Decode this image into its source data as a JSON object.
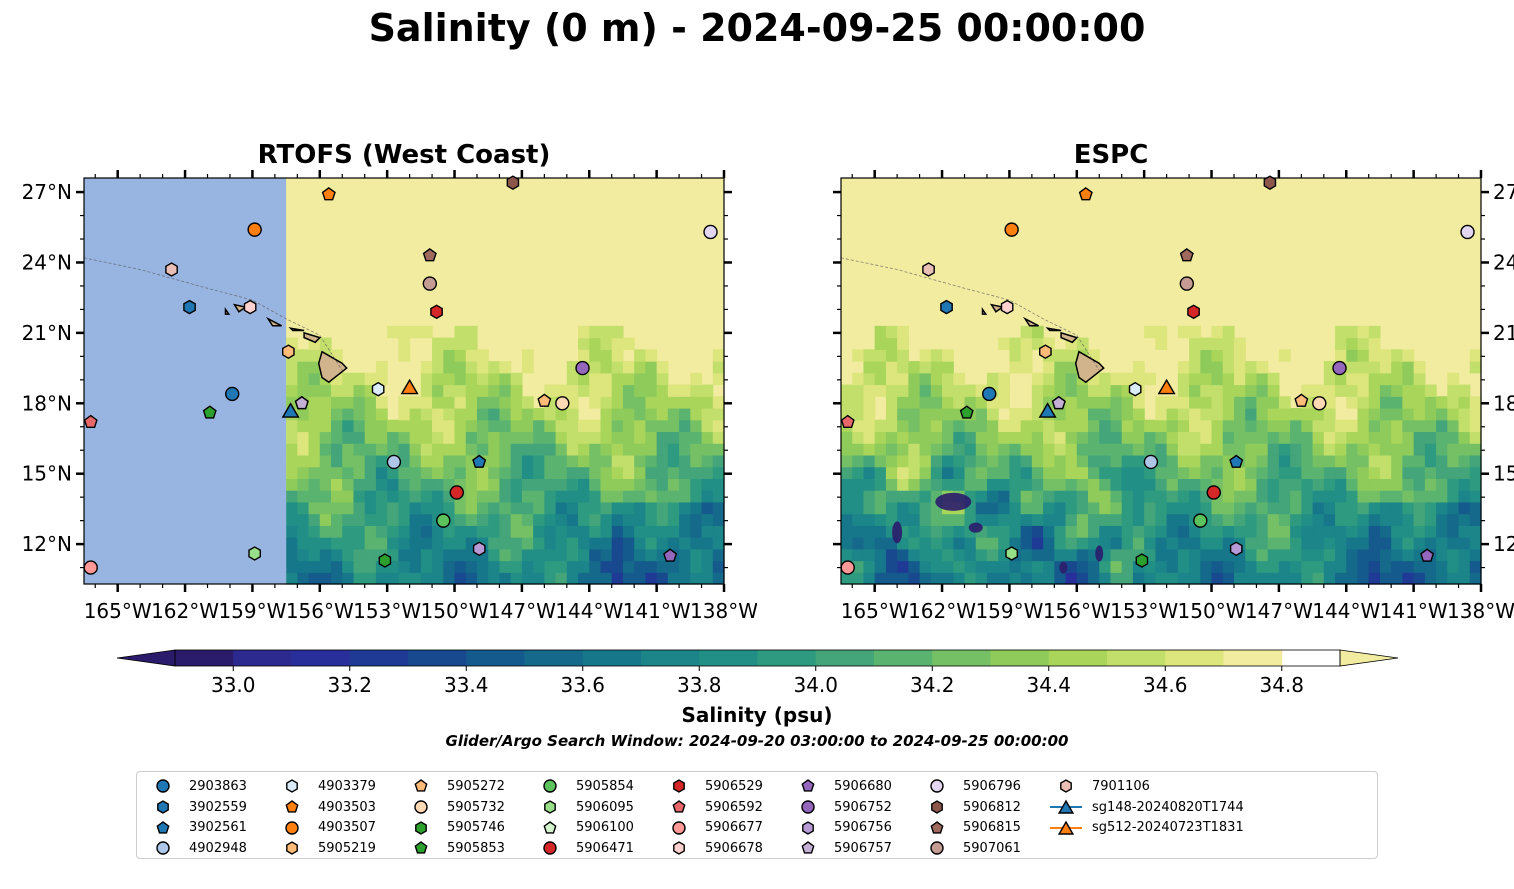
{
  "title": "Salinity (0 m) - 2024-09-25 00:00:00",
  "panels": [
    {
      "id": "left",
      "title": "RTOFS (West Coast)"
    },
    {
      "id": "right",
      "title": "ESPC"
    }
  ],
  "axes": {
    "lon_range": [
      -166.5,
      -138
    ],
    "lat_range": [
      10.3,
      27.6
    ],
    "lon_ticks": [
      -165,
      -162,
      -159,
      -156,
      -153,
      -150,
      -147,
      -144,
      -141,
      -138
    ],
    "lon_tick_labels": [
      "165°W",
      "162°W",
      "159°W",
      "156°W",
      "153°W",
      "150°W",
      "147°W",
      "144°W",
      "141°W",
      "138°W"
    ],
    "lat_ticks": [
      12,
      15,
      18,
      21,
      24,
      27
    ],
    "lat_tick_labels": [
      "12°N",
      "15°N",
      "18°N",
      "21°N",
      "24°N",
      "27°N"
    ]
  },
  "colorbar": {
    "label": "Salinity (psu)",
    "min": 32.9,
    "max": 34.9,
    "step": 0.1,
    "ticks": [
      33.0,
      33.2,
      33.4,
      33.6,
      33.8,
      34.0,
      34.2,
      34.4,
      34.6,
      34.8
    ],
    "tick_labels": [
      "33.0",
      "33.2",
      "33.4",
      "33.6",
      "33.8",
      "34.0",
      "34.2",
      "34.4",
      "34.6",
      "34.8"
    ],
    "extend": "both",
    "colors": [
      "#2a1c6b",
      "#2d2a8f",
      "#292f9a",
      "#1f3a95",
      "#18498f",
      "#155a8c",
      "#15698b",
      "#17778a",
      "#1b8589",
      "#228f86",
      "#2e9a80",
      "#43a579",
      "#5ab46f",
      "#75c065",
      "#8fcb5b",
      "#a8d55a",
      "#c3df6b",
      "#dde57d",
      "#f2eca0"
    ]
  },
  "search_window": "Glider/Argo Search Window: 2024-09-20 03:00:00 to 2024-09-25 00:00:00",
  "legend": [
    {
      "label": "2903863",
      "marker": "circle",
      "color": "#1f77b4"
    },
    {
      "label": "3902559",
      "marker": "hexagon",
      "color": "#1f77b4"
    },
    {
      "label": "3902561",
      "marker": "pentagon",
      "color": "#1f77b4"
    },
    {
      "label": "4902948",
      "marker": "circle",
      "color": "#aec7e8"
    },
    {
      "label": "4903379",
      "marker": "hexagon",
      "color": "#d9ecf8"
    },
    {
      "label": "4903503",
      "marker": "pentagon",
      "color": "#ff7f0e"
    },
    {
      "label": "4903507",
      "marker": "circle",
      "color": "#ff7f0e"
    },
    {
      "label": "5905219",
      "marker": "hexagon",
      "color": "#ffbb78"
    },
    {
      "label": "5905272",
      "marker": "pentagon",
      "color": "#ffbb78"
    },
    {
      "label": "5905732",
      "marker": "circle",
      "color": "#ffd8b4"
    },
    {
      "label": "5905746",
      "marker": "hexagon",
      "color": "#2ca02c"
    },
    {
      "label": "5905853",
      "marker": "pentagon",
      "color": "#2ca02c"
    },
    {
      "label": "5905854",
      "marker": "circle",
      "color": "#5cc35c"
    },
    {
      "label": "5906095",
      "marker": "hexagon",
      "color": "#98df8a"
    },
    {
      "label": "5906100",
      "marker": "pentagon",
      "color": "#d4f5cc"
    },
    {
      "label": "5906471",
      "marker": "circle",
      "color": "#d62728"
    },
    {
      "label": "5906529",
      "marker": "hexagon",
      "color": "#d62728"
    },
    {
      "label": "5906592",
      "marker": "pentagon",
      "color": "#e8676a"
    },
    {
      "label": "5906677",
      "marker": "circle",
      "color": "#ff9896"
    },
    {
      "label": "5906678",
      "marker": "hexagon",
      "color": "#ffd2d0"
    },
    {
      "label": "5906680",
      "marker": "pentagon",
      "color": "#9467bd"
    },
    {
      "label": "5906752",
      "marker": "circle",
      "color": "#9467bd"
    },
    {
      "label": "5906756",
      "marker": "hexagon",
      "color": "#b79ad6"
    },
    {
      "label": "5906757",
      "marker": "pentagon",
      "color": "#c5b0d5"
    },
    {
      "label": "5906796",
      "marker": "circle",
      "color": "#e3d6f0"
    },
    {
      "label": "5906812",
      "marker": "hexagon",
      "color": "#8c564b"
    },
    {
      "label": "5906815",
      "marker": "pentagon",
      "color": "#a0695d"
    },
    {
      "label": "5907061",
      "marker": "circle",
      "color": "#c49c94"
    },
    {
      "label": "7901106",
      "marker": "hexagon",
      "color": "#e9bfb6"
    },
    {
      "label": "sg148-20240820T1744",
      "marker": "triangle",
      "color": "#1f77b4",
      "line": true
    },
    {
      "label": "sg512-20240723T1831",
      "marker": "triangle",
      "color": "#ff7f0e",
      "line": true
    }
  ],
  "observations": [
    {
      "label": "2903863",
      "lon": -159.9,
      "lat": 18.4
    },
    {
      "label": "3902559",
      "lon": -161.8,
      "lat": 22.1
    },
    {
      "label": "3902561",
      "lon": -148.9,
      "lat": 15.5
    },
    {
      "label": "4902948",
      "lon": -152.7,
      "lat": 15.5
    },
    {
      "label": "4903379",
      "lon": -153.4,
      "lat": 18.6
    },
    {
      "label": "4903503",
      "lon": -155.6,
      "lat": 26.9
    },
    {
      "label": "4903507",
      "lon": -158.9,
      "lat": 25.4
    },
    {
      "label": "5905219",
      "lon": -157.4,
      "lat": 20.2
    },
    {
      "label": "5905272",
      "lon": -146.0,
      "lat": 18.1
    },
    {
      "label": "5905732",
      "lon": -145.2,
      "lat": 18.0
    },
    {
      "label": "5905746",
      "lon": -153.1,
      "lat": 11.3
    },
    {
      "label": "5905853",
      "lon": -160.9,
      "lat": 17.6
    },
    {
      "label": "5905854",
      "lon": -150.5,
      "lat": 13.0
    },
    {
      "label": "5906095",
      "lon": -158.9,
      "lat": 11.6
    },
    {
      "label": "5906100",
      "lon": -156.8,
      "lat": 18.0
    },
    {
      "label": "5906471",
      "lon": -149.9,
      "lat": 14.2
    },
    {
      "label": "5906529",
      "lon": -150.8,
      "lat": 21.9
    },
    {
      "label": "5906592",
      "lon": -166.2,
      "lat": 17.2
    },
    {
      "label": "5906677",
      "lon": -166.2,
      "lat": 11.0
    },
    {
      "label": "5906678",
      "lon": -159.1,
      "lat": 22.1
    },
    {
      "label": "5906680",
      "lon": -140.4,
      "lat": 11.5
    },
    {
      "label": "5906752",
      "lon": -144.3,
      "lat": 19.5
    },
    {
      "label": "5906756",
      "lon": -148.9,
      "lat": 11.8
    },
    {
      "label": "5906757",
      "lon": -156.8,
      "lat": 18.0
    },
    {
      "label": "5906796",
      "lon": -138.6,
      "lat": 25.3
    },
    {
      "label": "5906812",
      "lon": -147.4,
      "lat": 27.4
    },
    {
      "label": "5906815",
      "lon": -151.1,
      "lat": 24.3
    },
    {
      "label": "5907061",
      "lon": -151.1,
      "lat": 23.1
    },
    {
      "label": "7901106",
      "lon": -162.6,
      "lat": 23.7
    },
    {
      "label": "sg148-20240820T1744",
      "lon": -157.3,
      "lat": 17.7
    },
    {
      "label": "sg512-20240723T1831",
      "lon": -152.0,
      "lat": 18.7
    }
  ],
  "colors": {
    "rtofs_no_data": "#98b4e0",
    "land": "#d2b48c"
  }
}
